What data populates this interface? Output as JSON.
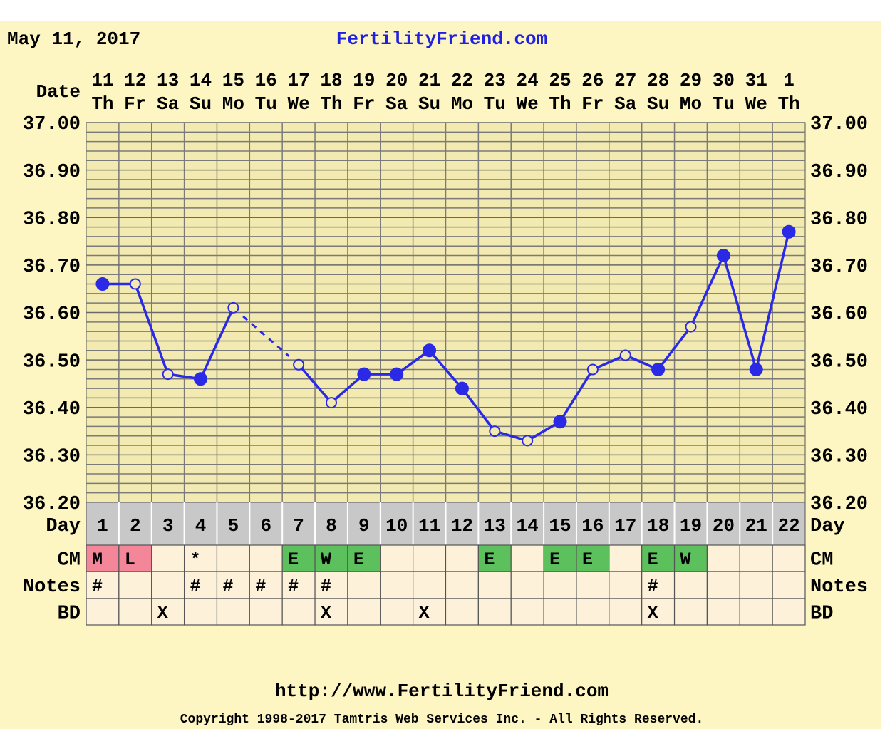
{
  "chart_data": {
    "type": "line",
    "date": "May 11, 2017",
    "title": "FertilityFriend.com",
    "date_label": "Date",
    "dates": [
      "11",
      "12",
      "13",
      "14",
      "15",
      "16",
      "17",
      "18",
      "19",
      "20",
      "21",
      "22",
      "23",
      "24",
      "25",
      "26",
      "27",
      "28",
      "29",
      "30",
      "31",
      "1"
    ],
    "weekdays": [
      "Th",
      "Fr",
      "Sa",
      "Su",
      "Mo",
      "Tu",
      "We",
      "Th",
      "Fr",
      "Sa",
      "Su",
      "Mo",
      "Tu",
      "We",
      "Th",
      "Fr",
      "Sa",
      "Su",
      "Mo",
      "Tu",
      "We",
      "Th"
    ],
    "day_label": "Day",
    "categories": [
      1,
      2,
      3,
      4,
      5,
      6,
      7,
      8,
      9,
      10,
      11,
      12,
      13,
      14,
      15,
      16,
      17,
      18,
      19,
      20,
      21,
      22
    ],
    "series": [
      {
        "color": "#2a2ae6",
        "values": [
          36.66,
          36.66,
          36.47,
          36.46,
          36.61,
          null,
          36.49,
          36.41,
          36.47,
          36.47,
          36.52,
          36.44,
          36.35,
          36.33,
          36.37,
          36.48,
          36.51,
          36.48,
          36.57,
          36.72,
          36.48,
          36.77
        ],
        "markers": [
          "filled",
          "open",
          "open",
          "filled",
          "open",
          null,
          "open",
          "open",
          "filled",
          "filled",
          "filled",
          "filled",
          "open",
          "open",
          "filled",
          "open",
          "open",
          "filled",
          "open",
          "filled",
          "filled",
          "filled"
        ]
      }
    ],
    "ylim": [
      36.2,
      37.0
    ],
    "yticks": [
      {
        "value": 36.2,
        "label": "36.20"
      },
      {
        "value": 36.3,
        "label": "36.30"
      },
      {
        "value": 36.4,
        "label": "36.40"
      },
      {
        "value": 36.5,
        "label": "36.50"
      },
      {
        "value": 36.6,
        "label": "36.60"
      },
      {
        "value": 36.7,
        "label": "36.70"
      },
      {
        "value": 36.8,
        "label": "36.80"
      },
      {
        "value": 36.9,
        "label": "36.90"
      },
      {
        "value": 37.0,
        "label": "37.00"
      }
    ],
    "minor_divisions": 5,
    "grid": true,
    "rows": [
      {
        "label": "CM",
        "cells": [
          "M",
          "L",
          null,
          "*",
          null,
          null,
          "E",
          "W",
          "E",
          null,
          null,
          null,
          "E",
          null,
          "E",
          "E",
          null,
          "E",
          "W",
          null,
          null,
          null
        ]
      },
      {
        "label": "Notes",
        "cells": [
          "#",
          null,
          null,
          "#",
          "#",
          "#",
          "#",
          "#",
          null,
          null,
          null,
          null,
          null,
          null,
          null,
          null,
          null,
          "#",
          null,
          null,
          null,
          null
        ]
      },
      {
        "label": "BD",
        "cells": [
          null,
          null,
          "X",
          null,
          null,
          null,
          null,
          "X",
          null,
          null,
          "X",
          null,
          null,
          null,
          null,
          null,
          null,
          "X",
          null,
          null,
          null,
          null
        ]
      }
    ],
    "cell_colors": {
      "M": "#f4869a",
      "L": "#f4869a",
      "E": "#5cc05c",
      "W": "#5cc05c"
    },
    "url": "http://www.FertilityFriend.com",
    "copyright": "Copyright 1998-2017 Tamtris Web Services Inc. - All Rights Reserved."
  }
}
